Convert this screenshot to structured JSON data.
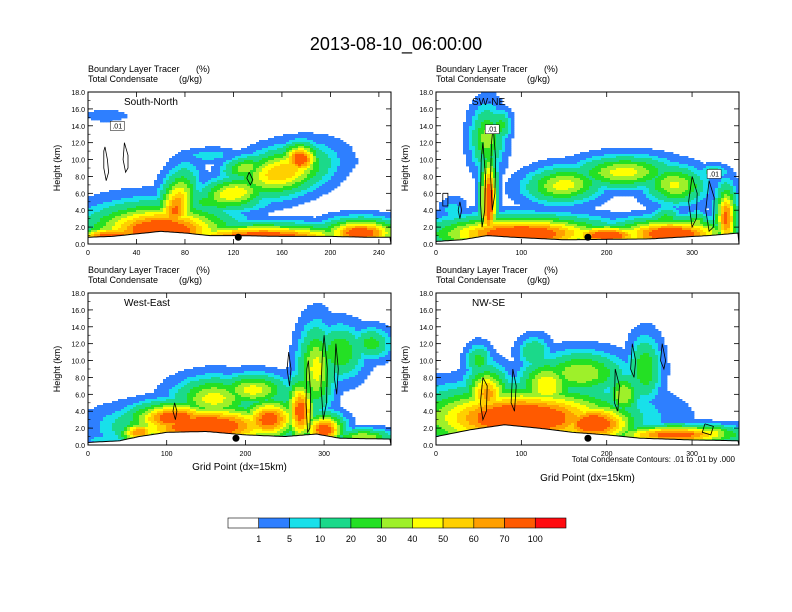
{
  "title": "2013-08-10_06:00:00",
  "palette": [
    "#ffffff",
    "#2e7fff",
    "#18e0ea",
    "#1bd98a",
    "#24e024",
    "#9ef02a",
    "#ffff00",
    "#ffd000",
    "#ff9f00",
    "#ff5a00",
    "#ff0b10"
  ],
  "contour_color": "#000000",
  "ground_marker_color": "#000000",
  "colorbar": {
    "labels": [
      "1",
      "5",
      "10",
      "20",
      "30",
      "40",
      "50",
      "60",
      "70",
      "100"
    ]
  },
  "chart_data": [
    {
      "type": "heatmap",
      "panel": "south-north",
      "left_title": "Boundary Layer Tracer",
      "left_title_units": "(%)",
      "left_subtitle": "Total Condensate",
      "left_subtitle_units": "(g/kg)",
      "label": "South-North",
      "ylabel": "Height (km)",
      "xlabel": "",
      "xlim": [
        0,
        250
      ],
      "ylim": [
        0,
        18
      ],
      "xticks": [
        0,
        40,
        80,
        120,
        160,
        200,
        240
      ],
      "xtick_labels": [
        "0",
        "40",
        "80",
        "120",
        "160",
        "200",
        "240"
      ],
      "yticks": [
        0,
        2,
        4,
        6,
        8,
        10,
        12,
        14,
        16,
        18
      ],
      "ytick_labels": [
        "0.0",
        "2.0",
        "4.0",
        "6.0",
        "8.0",
        "10.0",
        "12.0",
        "14.0",
        "16.0",
        "18.0"
      ],
      "contour_label": ".01",
      "contour_label_pos": [
        20,
        13.7
      ],
      "marker_x": 124,
      "terrain": [
        [
          0,
          0.8
        ],
        [
          20,
          0.9
        ],
        [
          40,
          1.2
        ],
        [
          60,
          1.5
        ],
        [
          80,
          1.3
        ],
        [
          100,
          1.0
        ],
        [
          120,
          1.0
        ],
        [
          160,
          0.9
        ],
        [
          200,
          0.9
        ],
        [
          230,
          0.8
        ],
        [
          250,
          0.8
        ]
      ],
      "blobs": [
        [
          60,
          1.5,
          45,
          2.5,
          92,
          0
        ],
        [
          20,
          0.8,
          25,
          1.0,
          90,
          0
        ],
        [
          145,
          0.8,
          60,
          1.2,
          88,
          0
        ],
        [
          225,
          1.3,
          25,
          1.3,
          85,
          0
        ],
        [
          72,
          4.0,
          12,
          3.5,
          72,
          0.3
        ],
        [
          120,
          6.0,
          22,
          1.6,
          50,
          0.7
        ],
        [
          160,
          8.5,
          28,
          2.3,
          60,
          0.9
        ],
        [
          175,
          10.0,
          12,
          1.5,
          85,
          0
        ],
        [
          130,
          9.0,
          15,
          1.2,
          35,
          0.7
        ],
        [
          110,
          5.0,
          30,
          1.0,
          30,
          0
        ],
        [
          15,
          15.2,
          20,
          0.8,
          2,
          0
        ],
        [
          10,
          2.5,
          8,
          0.7,
          10,
          0
        ],
        [
          40,
          4.2,
          12,
          0.5,
          5,
          0
        ],
        [
          100,
          10.5,
          18,
          0.7,
          8,
          0.6
        ],
        [
          215,
          9.8,
          6,
          0.8,
          4,
          0
        ]
      ],
      "contours": [
        [
          [
            14,
            11.5
          ],
          [
            16,
            10.0
          ],
          [
            17,
            8.5
          ],
          [
            15,
            7.5
          ],
          [
            13,
            9.0
          ],
          [
            13,
            11.0
          ],
          [
            14,
            11.5
          ]
        ],
        [
          [
            30,
            12.0
          ],
          [
            33,
            10.5
          ],
          [
            33,
            9.0
          ],
          [
            31,
            8.5
          ],
          [
            29,
            10.0
          ],
          [
            30,
            12.0
          ]
        ],
        [
          [
            133,
            8.5
          ],
          [
            136,
            7.6
          ],
          [
            134,
            7.0
          ],
          [
            131,
            7.8
          ],
          [
            133,
            8.5
          ]
        ]
      ]
    },
    {
      "type": "heatmap",
      "panel": "sw-ne",
      "left_title": "Boundary Layer Tracer",
      "left_title_units": "(%)",
      "left_subtitle": "Total Condensate",
      "left_subtitle_units": "(g/kg)",
      "label": "SW-NE",
      "ylabel": "Height (km)",
      "xlabel": "",
      "xlim": [
        0,
        355
      ],
      "ylim": [
        0,
        18
      ],
      "xticks": [
        0,
        100,
        200,
        300
      ],
      "xtick_labels": [
        "0",
        "100",
        "200",
        "300"
      ],
      "yticks": [
        0,
        2,
        4,
        6,
        8,
        10,
        12,
        14,
        16,
        18
      ],
      "ytick_labels": [
        "0.0",
        "2.0",
        "4.0",
        "6.0",
        "8.0",
        "10.0",
        "12.0",
        "14.0",
        "16.0",
        "18.0"
      ],
      "contour_label": ".01",
      "contour_label_pos": [
        60,
        13.3
      ],
      "contour_label2": ".01",
      "contour_label2_pos": [
        320,
        8.0
      ],
      "marker_x": 178,
      "terrain": [
        [
          0,
          0.3
        ],
        [
          30,
          0.5
        ],
        [
          60,
          1.0
        ],
        [
          90,
          0.8
        ],
        [
          150,
          0.5
        ],
        [
          250,
          0.6
        ],
        [
          320,
          1.0
        ],
        [
          355,
          1.3
        ]
      ],
      "blobs": [
        [
          100,
          1.2,
          80,
          1.6,
          92,
          0
        ],
        [
          62,
          5.0,
          8,
          4.5,
          88,
          0
        ],
        [
          275,
          1.2,
          55,
          1.4,
          88,
          0
        ],
        [
          200,
          1.0,
          40,
          1.0,
          85,
          0
        ],
        [
          340,
          3.0,
          10,
          3.0,
          75,
          0
        ],
        [
          150,
          7.0,
          35,
          1.7,
          45,
          0.45
        ],
        [
          220,
          8.5,
          45,
          1.5,
          45,
          0.3
        ],
        [
          280,
          7.0,
          28,
          1.8,
          42,
          -0.2
        ],
        [
          60,
          12.5,
          15,
          3.0,
          35,
          0
        ],
        [
          75,
          14.0,
          10,
          1.5,
          25,
          0
        ],
        [
          325,
          8.5,
          15,
          0.7,
          15,
          0
        ],
        [
          20,
          4.0,
          12,
          1.2,
          8,
          0
        ],
        [
          270,
          2.5,
          15,
          1.5,
          30,
          0
        ],
        [
          305,
          2.2,
          12,
          1.2,
          40,
          0
        ]
      ],
      "contours": [
        [
          [
            55,
            12
          ],
          [
            58,
            8
          ],
          [
            57,
            4
          ],
          [
            54,
            2
          ],
          [
            52,
            5
          ],
          [
            53,
            10
          ],
          [
            55,
            12
          ]
        ],
        [
          [
            67,
            14
          ],
          [
            70,
            10
          ],
          [
            69,
            6
          ],
          [
            66,
            4
          ],
          [
            64,
            8
          ],
          [
            65,
            12
          ],
          [
            67,
            14
          ]
        ],
        [
          [
            28,
            5
          ],
          [
            30,
            4
          ],
          [
            28,
            3
          ],
          [
            26,
            4
          ],
          [
            28,
            5
          ]
        ],
        [
          [
            300,
            8
          ],
          [
            306,
            6
          ],
          [
            305,
            3
          ],
          [
            300,
            2
          ],
          [
            296,
            5
          ],
          [
            300,
            8
          ]
        ],
        [
          [
            320,
            7.5
          ],
          [
            326,
            5.5
          ],
          [
            325,
            2
          ],
          [
            320,
            1.5
          ],
          [
            316,
            4
          ],
          [
            320,
            7.5
          ]
        ],
        [
          [
            8,
            6
          ],
          [
            14,
            6
          ],
          [
            14,
            4.5
          ],
          [
            8,
            4.5
          ],
          [
            8,
            6
          ]
        ]
      ]
    },
    {
      "type": "heatmap",
      "panel": "west-east",
      "left_title": "Boundary Layer Tracer",
      "left_title_units": "(%)",
      "left_subtitle": "Total Condensate",
      "left_subtitle_units": "(g/kg)",
      "label": "West-East",
      "ylabel": "Height (km)",
      "xlabel": "Grid Point (dx=15km)",
      "xlim": [
        0,
        385
      ],
      "ylim": [
        0,
        18
      ],
      "xticks": [
        0,
        100,
        200,
        300
      ],
      "xtick_labels": [
        "0",
        "100",
        "200",
        "300"
      ],
      "yticks": [
        0,
        2,
        4,
        6,
        8,
        10,
        12,
        14,
        16,
        18
      ],
      "ytick_labels": [
        "0.0",
        "2.0",
        "4.0",
        "6.0",
        "8.0",
        "10.0",
        "12.0",
        "14.0",
        "16.0",
        "18.0"
      ],
      "contour_label": "",
      "contour_label_pos": [
        0,
        0
      ],
      "marker_x": 188,
      "terrain": [
        [
          0,
          0.3
        ],
        [
          40,
          0.5
        ],
        [
          65,
          1.0
        ],
        [
          100,
          1.5
        ],
        [
          150,
          1.6
        ],
        [
          200,
          1.2
        ],
        [
          250,
          1.0
        ],
        [
          290,
          1.3
        ],
        [
          320,
          0.8
        ],
        [
          385,
          0.7
        ]
      ],
      "blobs": [
        [
          150,
          2.2,
          80,
          2.0,
          92,
          0.25
        ],
        [
          110,
          3.2,
          45,
          1.5,
          85,
          0.35
        ],
        [
          65,
          1.5,
          20,
          1.0,
          70,
          0.4
        ],
        [
          230,
          3.0,
          30,
          2.0,
          80,
          0.2
        ],
        [
          270,
          4.0,
          15,
          3.0,
          80,
          0
        ],
        [
          210,
          6.5,
          35,
          1.5,
          45,
          0
        ],
        [
          160,
          5.5,
          40,
          2.0,
          45,
          0.1
        ],
        [
          290,
          9.0,
          18,
          4.0,
          45,
          0
        ],
        [
          320,
          11.0,
          25,
          2.5,
          30,
          0
        ],
        [
          360,
          12.0,
          20,
          1.5,
          25,
          0
        ],
        [
          300,
          1.8,
          20,
          1.5,
          85,
          0
        ],
        [
          350,
          0.9,
          30,
          0.8,
          40,
          0
        ],
        [
          20,
          0.6,
          20,
          0.5,
          10,
          0
        ]
      ],
      "contours": [
        [
          [
            280,
            10
          ],
          [
            283,
            6
          ],
          [
            282,
            2
          ],
          [
            279,
            1.5
          ],
          [
            277,
            5
          ],
          [
            278,
            9
          ],
          [
            280,
            10
          ]
        ],
        [
          [
            300,
            13
          ],
          [
            304,
            9
          ],
          [
            303,
            5
          ],
          [
            299,
            3
          ],
          [
            296,
            7
          ],
          [
            298,
            11
          ],
          [
            300,
            13
          ]
        ],
        [
          [
            315,
            12
          ],
          [
            318,
            9
          ],
          [
            316,
            6
          ],
          [
            313,
            8
          ],
          [
            315,
            12
          ]
        ],
        [
          [
            255,
            11
          ],
          [
            258,
            9
          ],
          [
            256,
            7
          ],
          [
            253,
            9
          ],
          [
            255,
            11
          ]
        ],
        [
          [
            110,
            5
          ],
          [
            113,
            4
          ],
          [
            111,
            3
          ],
          [
            108,
            4
          ],
          [
            110,
            5
          ]
        ]
      ]
    },
    {
      "type": "heatmap",
      "panel": "nw-se",
      "left_title": "Boundary Layer Tracer",
      "left_title_units": "(%)",
      "left_subtitle": "Total Condensate",
      "left_subtitle_units": "(g/kg)",
      "label": "NW-SE",
      "ylabel": "Height (km)",
      "xlabel": "Grid Point (dx=15km)",
      "xlim": [
        0,
        355
      ],
      "ylim": [
        0,
        18
      ],
      "xticks": [
        0,
        100,
        200,
        300
      ],
      "xtick_labels": [
        "0",
        "100",
        "200",
        "300"
      ],
      "yticks": [
        0,
        2,
        4,
        6,
        8,
        10,
        12,
        14,
        16,
        18
      ],
      "ytick_labels": [
        "0.0",
        "2.0",
        "4.0",
        "6.0",
        "8.0",
        "10.0",
        "12.0",
        "14.0",
        "16.0",
        "18.0"
      ],
      "contour_label": "",
      "contour_label_pos": [
        0,
        0
      ],
      "marker_x": 178,
      "terrain": [
        [
          0,
          1.0
        ],
        [
          40,
          1.8
        ],
        [
          80,
          2.4
        ],
        [
          120,
          2.0
        ],
        [
          160,
          1.5
        ],
        [
          200,
          1.2
        ],
        [
          240,
          0.8
        ],
        [
          300,
          0.6
        ],
        [
          355,
          0.5
        ]
      ],
      "blobs": [
        [
          100,
          3.2,
          95,
          2.8,
          95,
          0
        ],
        [
          185,
          2.5,
          40,
          2.0,
          88,
          0
        ],
        [
          280,
          1.2,
          60,
          0.9,
          80,
          0
        ],
        [
          60,
          6.0,
          20,
          2.5,
          65,
          0
        ],
        [
          130,
          7.0,
          25,
          2.5,
          50,
          0
        ],
        [
          170,
          8.5,
          40,
          2.0,
          40,
          0
        ],
        [
          50,
          10.0,
          12,
          1.5,
          25,
          0
        ],
        [
          115,
          11.0,
          15,
          1.5,
          20,
          0
        ],
        [
          220,
          6.0,
          15,
          2.0,
          40,
          0
        ],
        [
          245,
          9.0,
          15,
          3.0,
          30,
          0
        ],
        [
          325,
          1.5,
          20,
          0.7,
          45,
          0
        ]
      ],
      "contours": [
        [
          [
            55,
            8
          ],
          [
            60,
            7
          ],
          [
            59,
            4
          ],
          [
            55,
            3
          ],
          [
            52,
            5
          ],
          [
            55,
            8
          ]
        ],
        [
          [
            90,
            9
          ],
          [
            94,
            7
          ],
          [
            92,
            4
          ],
          [
            88,
            5
          ],
          [
            90,
            9
          ]
        ],
        [
          [
            210,
            9
          ],
          [
            215,
            7
          ],
          [
            213,
            4
          ],
          [
            209,
            5
          ],
          [
            210,
            9
          ]
        ],
        [
          [
            230,
            12
          ],
          [
            234,
            10
          ],
          [
            232,
            8
          ],
          [
            228,
            9
          ],
          [
            230,
            12
          ]
        ],
        [
          [
            265,
            12
          ],
          [
            269,
            10
          ],
          [
            267,
            9
          ],
          [
            263,
            10
          ],
          [
            265,
            12
          ]
        ],
        [
          [
            315,
            2.5
          ],
          [
            325,
            2.2
          ],
          [
            322,
            1.2
          ],
          [
            312,
            1.5
          ],
          [
            315,
            2.5
          ]
        ]
      ]
    }
  ],
  "contour_note": "Total Condensate Contours: .01 to .01 by .000"
}
